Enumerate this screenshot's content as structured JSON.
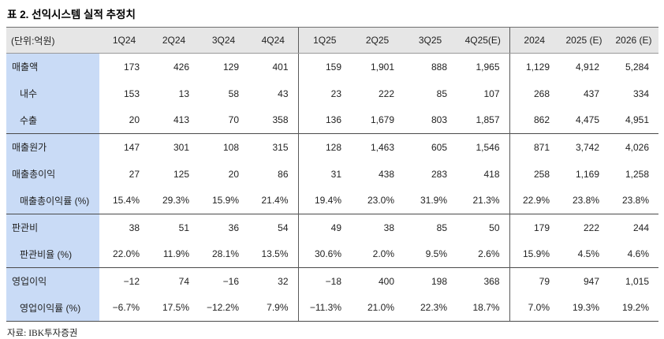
{
  "title": "표 2. 선익시스템 실적 추정치",
  "source": "자료: IBK투자증권",
  "colors": {
    "header_bg": "#e6e6e6",
    "label_column_bg": "#c9dbf6",
    "rule_dark": "#4a4a4a"
  },
  "table": {
    "unit_label": "(단위:억원)",
    "columns": [
      "1Q24",
      "2Q24",
      "3Q24",
      "4Q24",
      "1Q25",
      "2Q25",
      "3Q25",
      "4Q25(E)",
      "2024",
      "2025 (E)",
      "2026 (E)"
    ],
    "section_divider_before": [
      4,
      8
    ],
    "rows": [
      {
        "label": "매출액",
        "indent": 0,
        "group_start": false,
        "values": [
          "173",
          "426",
          "129",
          "401",
          "159",
          "1,901",
          "888",
          "1,965",
          "1,129",
          "4,912",
          "5,284"
        ]
      },
      {
        "label": "내수",
        "indent": 1,
        "group_start": false,
        "values": [
          "153",
          "13",
          "58",
          "43",
          "23",
          "222",
          "85",
          "107",
          "268",
          "437",
          "334"
        ]
      },
      {
        "label": "수출",
        "indent": 1,
        "group_start": false,
        "values": [
          "20",
          "413",
          "70",
          "358",
          "136",
          "1,679",
          "803",
          "1,857",
          "862",
          "4,475",
          "4,951"
        ]
      },
      {
        "label": "매출원가",
        "indent": 0,
        "group_start": true,
        "values": [
          "147",
          "301",
          "108",
          "315",
          "128",
          "1,463",
          "605",
          "1,546",
          "871",
          "3,742",
          "4,026"
        ]
      },
      {
        "label": "매출총이익",
        "indent": 0,
        "group_start": false,
        "values": [
          "27",
          "125",
          "20",
          "86",
          "31",
          "438",
          "283",
          "418",
          "258",
          "1,169",
          "1,258"
        ]
      },
      {
        "label": "매출총이익률 (%)",
        "indent": 1,
        "group_start": false,
        "values": [
          "15.4%",
          "29.3%",
          "15.9%",
          "21.4%",
          "19.4%",
          "23.0%",
          "31.9%",
          "21.3%",
          "22.9%",
          "23.8%",
          "23.8%"
        ]
      },
      {
        "label": "판관비",
        "indent": 0,
        "group_start": true,
        "values": [
          "38",
          "51",
          "36",
          "54",
          "49",
          "38",
          "85",
          "50",
          "179",
          "222",
          "244"
        ]
      },
      {
        "label": "판관비율 (%)",
        "indent": 1,
        "group_start": false,
        "values": [
          "22.0%",
          "11.9%",
          "28.1%",
          "13.5%",
          "30.6%",
          "2.0%",
          "9.5%",
          "2.6%",
          "15.9%",
          "4.5%",
          "4.6%"
        ]
      },
      {
        "label": "영업이익",
        "indent": 0,
        "group_start": true,
        "values": [
          "−12",
          "74",
          "−16",
          "32",
          "−18",
          "400",
          "198",
          "368",
          "79",
          "947",
          "1,015"
        ]
      },
      {
        "label": "영업이익률 (%)",
        "indent": 1,
        "group_start": false,
        "values": [
          "−6.7%",
          "17.5%",
          "−12.2%",
          "7.9%",
          "−11.3%",
          "21.0%",
          "22.3%",
          "18.7%",
          "7.0%",
          "19.3%",
          "19.2%"
        ]
      }
    ]
  }
}
